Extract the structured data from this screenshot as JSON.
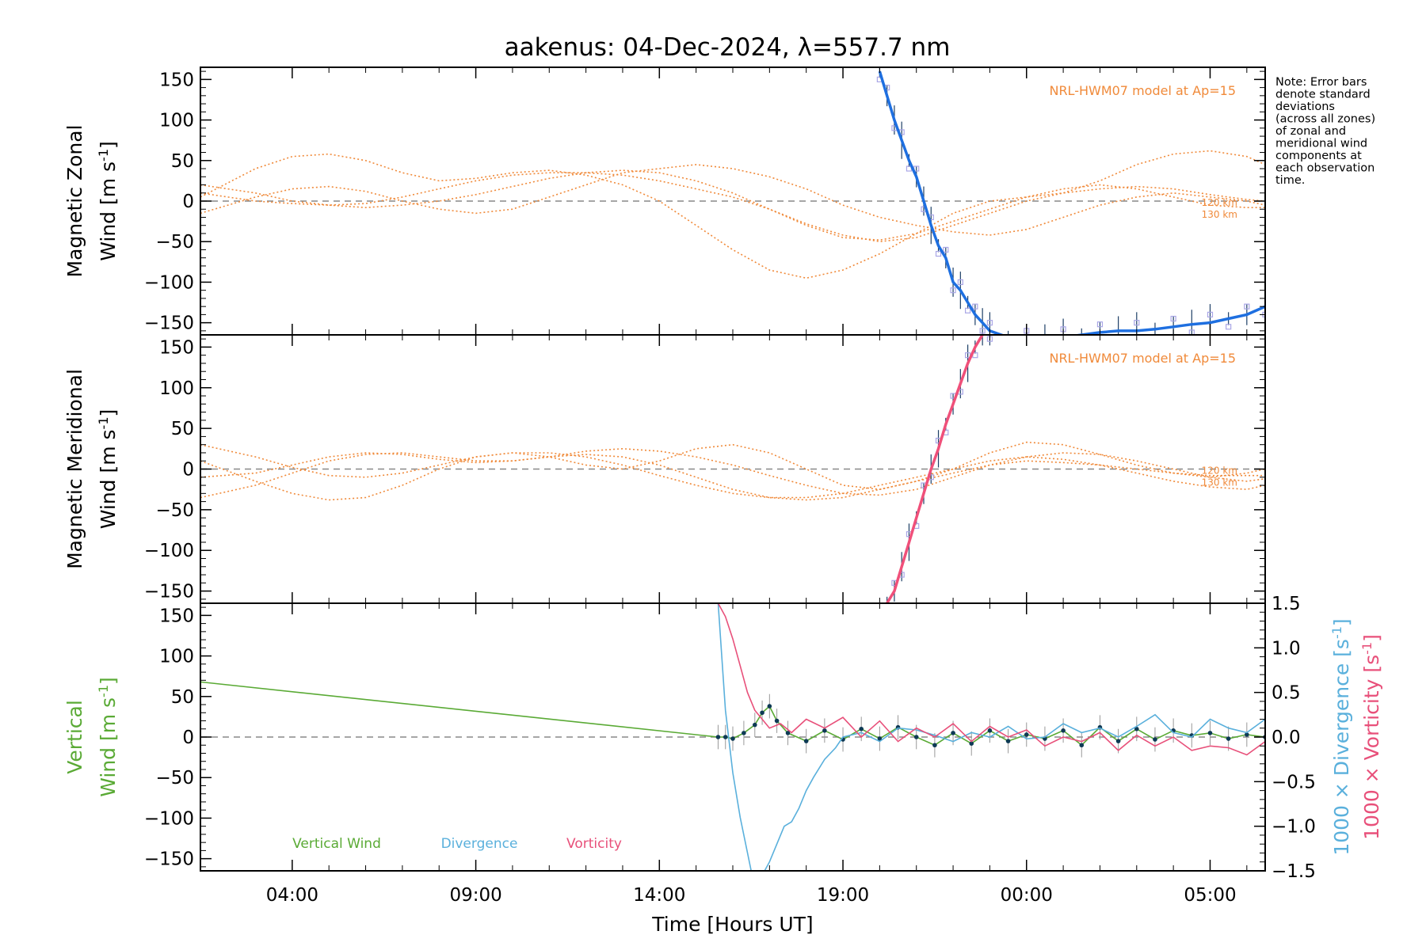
{
  "title": "aakenus: 04-Dec-2024, λ=557.7 nm",
  "note": [
    "Note: Error bars",
    "denote standard",
    "deviations",
    "(across all zones)",
    "of zonal and",
    "meridional wind",
    "components at",
    "each observation",
    "time."
  ],
  "colors": {
    "model": "#f08a3a",
    "zonal": "#1e6fe0",
    "zonal_err": "#1d3f66",
    "meridional": "#f0507a",
    "zone_scatter": "#a9a6e6",
    "vertical": "#5aaa35",
    "vertical_pts": "#0e3a55",
    "divergence": "#5ab0dc",
    "vorticity": "#e8507a",
    "zero_line": "#888888"
  },
  "chart_data": [
    {
      "type": "line",
      "panel": "zonal",
      "ylabel_line1": "Magnetic Zonal",
      "ylabel_line2": "Wind [m s",
      "ylabel_sup": "-1",
      "ylabel_close": "]",
      "ylim": [
        -165,
        165
      ],
      "yticks": [
        -150,
        -100,
        -50,
        0,
        50,
        100,
        150
      ],
      "xlim": [
        1.5,
        30.5
      ],
      "model_label": "NRL-HWM07 model at Ap=15",
      "model_height_labels": [
        "120 km",
        "130 km"
      ],
      "series": [
        {
          "role": "model",
          "x": [
            1.5,
            3,
            4,
            5,
            6,
            7,
            8,
            9,
            10,
            11,
            12,
            13,
            14,
            15,
            16,
            17,
            18,
            19,
            20,
            21,
            22,
            23,
            24,
            25,
            26,
            27,
            28,
            29,
            30,
            30.5
          ],
          "values": [
            20,
            10,
            0,
            -5,
            -8,
            -5,
            0,
            8,
            18,
            28,
            35,
            38,
            35,
            25,
            10,
            -10,
            -30,
            -45,
            -48,
            -40,
            -25,
            -10,
            5,
            15,
            20,
            15,
            5,
            -5,
            -8,
            -8
          ]
        },
        {
          "role": "model",
          "x": [
            1.5,
            3,
            4,
            5,
            6,
            7,
            8,
            9,
            10,
            11,
            12,
            13,
            14,
            15,
            16,
            17,
            18,
            19,
            20,
            21,
            22,
            23,
            24,
            25,
            26,
            27,
            28,
            29,
            30,
            30.5
          ],
          "values": [
            -15,
            5,
            15,
            18,
            12,
            0,
            -10,
            -15,
            -10,
            5,
            20,
            35,
            40,
            45,
            40,
            30,
            15,
            -5,
            -20,
            -30,
            -38,
            -42,
            -35,
            -20,
            -5,
            5,
            10,
            5,
            0,
            -5
          ]
        },
        {
          "role": "model",
          "x": [
            1.5,
            3,
            4,
            5,
            6,
            7,
            8,
            9,
            10,
            11,
            12,
            13,
            14,
            15,
            16,
            17,
            18,
            19,
            20,
            21,
            22,
            23,
            24,
            25,
            26,
            27,
            28,
            29,
            30,
            30.5
          ],
          "values": [
            5,
            40,
            55,
            58,
            50,
            35,
            25,
            28,
            35,
            38,
            32,
            20,
            0,
            -30,
            -60,
            -85,
            -95,
            -85,
            -65,
            -40,
            -15,
            0,
            5,
            10,
            25,
            45,
            58,
            62,
            55,
            45
          ]
        },
        {
          "role": "model",
          "x": [
            1.5,
            3,
            4,
            5,
            6,
            7,
            8,
            9,
            10,
            11,
            12,
            13,
            14,
            15,
            16,
            17,
            18,
            19,
            20,
            21,
            22,
            23,
            24,
            25,
            26,
            27,
            28,
            29,
            30,
            30.5
          ],
          "values": [
            10,
            0,
            -3,
            -5,
            -3,
            5,
            15,
            25,
            32,
            35,
            35,
            32,
            25,
            15,
            5,
            -10,
            -28,
            -42,
            -50,
            -45,
            -30,
            -15,
            0,
            10,
            15,
            18,
            15,
            8,
            2,
            0
          ]
        },
        {
          "role": "observed",
          "x": [
            20.0,
            20.2,
            20.4,
            20.6,
            20.8,
            21.0,
            21.2,
            21.4,
            21.6,
            21.8,
            22.0,
            22.2,
            22.4,
            22.6,
            22.8,
            23.0,
            23.5,
            24.0,
            24.5,
            25.0,
            25.5,
            26.0,
            26.5,
            27.0,
            27.5,
            28.0,
            28.5,
            29.0,
            29.5,
            30.0,
            30.5
          ],
          "values": [
            160,
            130,
            100,
            75,
            50,
            30,
            0,
            -30,
            -55,
            -70,
            -100,
            -110,
            -125,
            -140,
            -150,
            -160,
            -168,
            -170,
            -170,
            -168,
            -165,
            -162,
            -160,
            -160,
            -158,
            -155,
            -152,
            -150,
            -145,
            -140,
            -130
          ]
        }
      ]
    },
    {
      "type": "line",
      "panel": "meridional",
      "ylabel_line1": "Magnetic Meridional",
      "ylabel_line2": "Wind [m s",
      "ylabel_sup": "-1",
      "ylabel_close": "]",
      "ylim": [
        -165,
        165
      ],
      "yticks": [
        -150,
        -100,
        -50,
        0,
        50,
        100,
        150
      ],
      "xlim": [
        1.5,
        30.5
      ],
      "model_label": "NRL-HWM07 model at Ap=15",
      "model_height_labels": [
        "120 km",
        "130 km"
      ],
      "series": [
        {
          "role": "model",
          "x": [
            1.5,
            3,
            4,
            5,
            6,
            7,
            8,
            9,
            10,
            11,
            12,
            13,
            14,
            15,
            16,
            17,
            18,
            19,
            20,
            21,
            22,
            23,
            24,
            25,
            26,
            27,
            28,
            29,
            30,
            30.5
          ],
          "values": [
            30,
            15,
            2,
            -8,
            -10,
            -5,
            5,
            15,
            20,
            20,
            15,
            5,
            -8,
            -20,
            -30,
            -35,
            -35,
            -30,
            -20,
            -10,
            0,
            10,
            15,
            12,
            5,
            -5,
            -15,
            -22,
            -25,
            -20
          ]
        },
        {
          "role": "model",
          "x": [
            1.5,
            3,
            4,
            5,
            6,
            7,
            8,
            9,
            10,
            11,
            12,
            13,
            14,
            15,
            16,
            17,
            18,
            19,
            20,
            21,
            22,
            23,
            24,
            25,
            26,
            27,
            28,
            29,
            30,
            30.5
          ],
          "values": [
            -35,
            -20,
            -5,
            10,
            18,
            20,
            15,
            10,
            10,
            15,
            22,
            25,
            22,
            15,
            5,
            -8,
            -20,
            -30,
            -32,
            -25,
            -10,
            5,
            15,
            20,
            18,
            10,
            0,
            -10,
            -15,
            -12
          ]
        },
        {
          "role": "model",
          "x": [
            1.5,
            3,
            4,
            5,
            6,
            7,
            8,
            9,
            10,
            11,
            12,
            13,
            14,
            15,
            16,
            17,
            18,
            19,
            20,
            21,
            22,
            23,
            24,
            25,
            26,
            27,
            28,
            29,
            30,
            30.5
          ],
          "values": [
            10,
            -15,
            -30,
            -38,
            -35,
            -20,
            0,
            15,
            20,
            15,
            5,
            0,
            10,
            25,
            30,
            20,
            0,
            -20,
            -25,
            -15,
            0,
            20,
            33,
            30,
            18,
            5,
            -5,
            -10,
            -5,
            0
          ]
        },
        {
          "role": "model",
          "x": [
            1.5,
            3,
            4,
            5,
            6,
            7,
            8,
            9,
            10,
            11,
            12,
            13,
            14,
            15,
            16,
            17,
            18,
            19,
            20,
            21,
            22,
            23,
            24,
            25,
            26,
            27,
            28,
            29,
            30,
            30.5
          ],
          "values": [
            -10,
            -5,
            5,
            15,
            20,
            18,
            12,
            8,
            10,
            15,
            18,
            15,
            5,
            -10,
            -25,
            -35,
            -38,
            -35,
            -25,
            -15,
            -5,
            5,
            10,
            8,
            5,
            0,
            -5,
            -8,
            -8,
            -8
          ]
        },
        {
          "role": "observed",
          "x": [
            20.2,
            20.4,
            20.6,
            20.8,
            21.0,
            21.2,
            21.4,
            21.6,
            21.8,
            22.0,
            22.2,
            22.4,
            22.6,
            22.8,
            23.0
          ],
          "values": [
            -165,
            -150,
            -120,
            -90,
            -60,
            -30,
            0,
            25,
            55,
            80,
            105,
            130,
            150,
            165,
            170
          ]
        }
      ]
    },
    {
      "type": "line",
      "panel": "vertical",
      "ylabel_line1": "Vertical",
      "ylabel_line2": "Wind [m s",
      "ylabel_sup": "-1",
      "ylabel_close": "]",
      "ylim": [
        -165,
        165
      ],
      "yticks": [
        -150,
        -100,
        -50,
        0,
        50,
        100,
        150
      ],
      "xlim": [
        1.5,
        30.5
      ],
      "xticks": [
        {
          "x": 4,
          "label": "04:00"
        },
        {
          "x": 9,
          "label": "09:00"
        },
        {
          "x": 14,
          "label": "14:00"
        },
        {
          "x": 19,
          "label": "19:00"
        },
        {
          "x": 24,
          "label": "00:00"
        },
        {
          "x": 29,
          "label": "05:00"
        }
      ],
      "xlabel": "Time [Hours UT]",
      "right_axis": {
        "ylim": [
          -1.5,
          1.5
        ],
        "yticks": [
          -1.5,
          -1.0,
          -0.5,
          0.0,
          0.5,
          1.0,
          1.5
        ],
        "ytick_labels": [
          "−1.5",
          "−1.0",
          "−0.5",
          "0.0",
          "0.5",
          "1.0",
          "1.5"
        ],
        "label_divergence": "1000 × Divergence [s",
        "label_vorticity": "1000 × Vorticity [s",
        "label_sup": "-1",
        "label_close": "]"
      },
      "legend": [
        "Vertical Wind",
        "Divergence",
        "Vorticity"
      ],
      "series": [
        {
          "name": "Vertical Wind",
          "axis": "left",
          "x": [
            1.5,
            15.6,
            15.8,
            16.0,
            16.3,
            16.6,
            16.8,
            17.0,
            17.2,
            17.5,
            18,
            18.5,
            19,
            19.5,
            20,
            20.5,
            21,
            21.5,
            22,
            22.5,
            23,
            23.5,
            24,
            24.5,
            25,
            25.5,
            26,
            26.5,
            27,
            27.5,
            28,
            28.5,
            29,
            29.5,
            30,
            30.5
          ],
          "values": [
            68,
            0,
            0,
            -2,
            5,
            15,
            30,
            38,
            20,
            5,
            -5,
            8,
            -3,
            10,
            -2,
            12,
            0,
            -10,
            5,
            -8,
            8,
            -5,
            3,
            -2,
            8,
            -10,
            12,
            -5,
            10,
            -3,
            8,
            2,
            5,
            -2,
            3,
            0
          ]
        },
        {
          "name": "Divergence",
          "axis": "right",
          "x": [
            15.6,
            15.8,
            16.0,
            16.2,
            16.5,
            16.8,
            17.0,
            17.2,
            17.4,
            17.6,
            17.8,
            18.0,
            18.2,
            18.5,
            18.8,
            19.0,
            19.5,
            20,
            20.5,
            21,
            21.5,
            22,
            22.5,
            23,
            23.5,
            24,
            24.5,
            25,
            25.5,
            26,
            26.5,
            27,
            27.5,
            28,
            28.5,
            29,
            29.5,
            30,
            30.5
          ],
          "values": [
            1.5,
            0.3,
            -0.4,
            -0.9,
            -1.5,
            -1.55,
            -1.4,
            -1.2,
            -1.0,
            -0.95,
            -0.8,
            -0.6,
            -0.45,
            -0.25,
            -0.12,
            0.0,
            0.05,
            -0.05,
            0.1,
            0.08,
            0.02,
            -0.05,
            0.05,
            0.0,
            0.12,
            -0.02,
            0.0,
            0.15,
            0.05,
            0.1,
            0.0,
            0.12,
            0.25,
            0.05,
            0.0,
            0.2,
            0.1,
            0.05,
            0.2
          ]
        },
        {
          "name": "Vorticity",
          "axis": "right",
          "x": [
            15.6,
            15.8,
            16.0,
            16.2,
            16.4,
            16.6,
            16.8,
            17.0,
            17.3,
            17.6,
            18,
            18.5,
            19,
            19.5,
            20,
            20.5,
            21,
            21.5,
            22,
            22.5,
            23,
            23.5,
            24,
            24.5,
            25,
            25.5,
            26,
            26.5,
            27,
            27.5,
            28,
            28.5,
            29,
            29.5,
            30,
            30.5
          ],
          "values": [
            1.5,
            1.35,
            1.1,
            0.8,
            0.5,
            0.3,
            0.2,
            0.1,
            0.15,
            0.05,
            0.2,
            0.1,
            0.22,
            0.0,
            0.18,
            -0.05,
            0.1,
            0.0,
            0.15,
            -0.05,
            0.12,
            0.0,
            0.08,
            -0.1,
            0.0,
            -0.05,
            0.05,
            -0.15,
            0.02,
            -0.1,
            0.0,
            -0.15,
            -0.1,
            -0.12,
            -0.2,
            -0.05
          ]
        }
      ]
    }
  ]
}
